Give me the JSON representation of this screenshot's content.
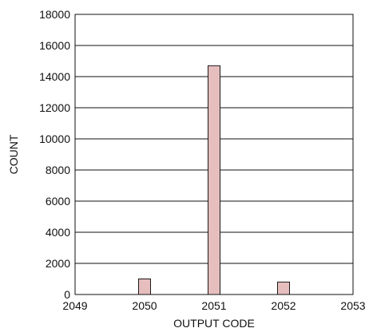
{
  "chart_data": {
    "type": "bar",
    "title": "",
    "xlabel": "OUTPUT CODE",
    "ylabel": "COUNT",
    "xlim": [
      2049,
      2053
    ],
    "ylim": [
      0,
      18000
    ],
    "x_ticks": [
      "2049",
      "2050",
      "2051",
      "2052",
      "2053"
    ],
    "y_ticks": [
      "0",
      "2000",
      "4000",
      "6000",
      "8000",
      "10000",
      "12000",
      "14000",
      "16000",
      "18000"
    ],
    "grid": {
      "horizontal": true,
      "vertical": false
    },
    "legend": "none",
    "bars": [
      {
        "x": 2050,
        "value": 1000
      },
      {
        "x": 2051,
        "value": 14700
      },
      {
        "x": 2052,
        "value": 800
      }
    ],
    "colors": {
      "bar_fill": "#e7bebe",
      "bar_stroke": "#1a1a1a",
      "axis": "#111111",
      "grid": "#111111"
    }
  }
}
